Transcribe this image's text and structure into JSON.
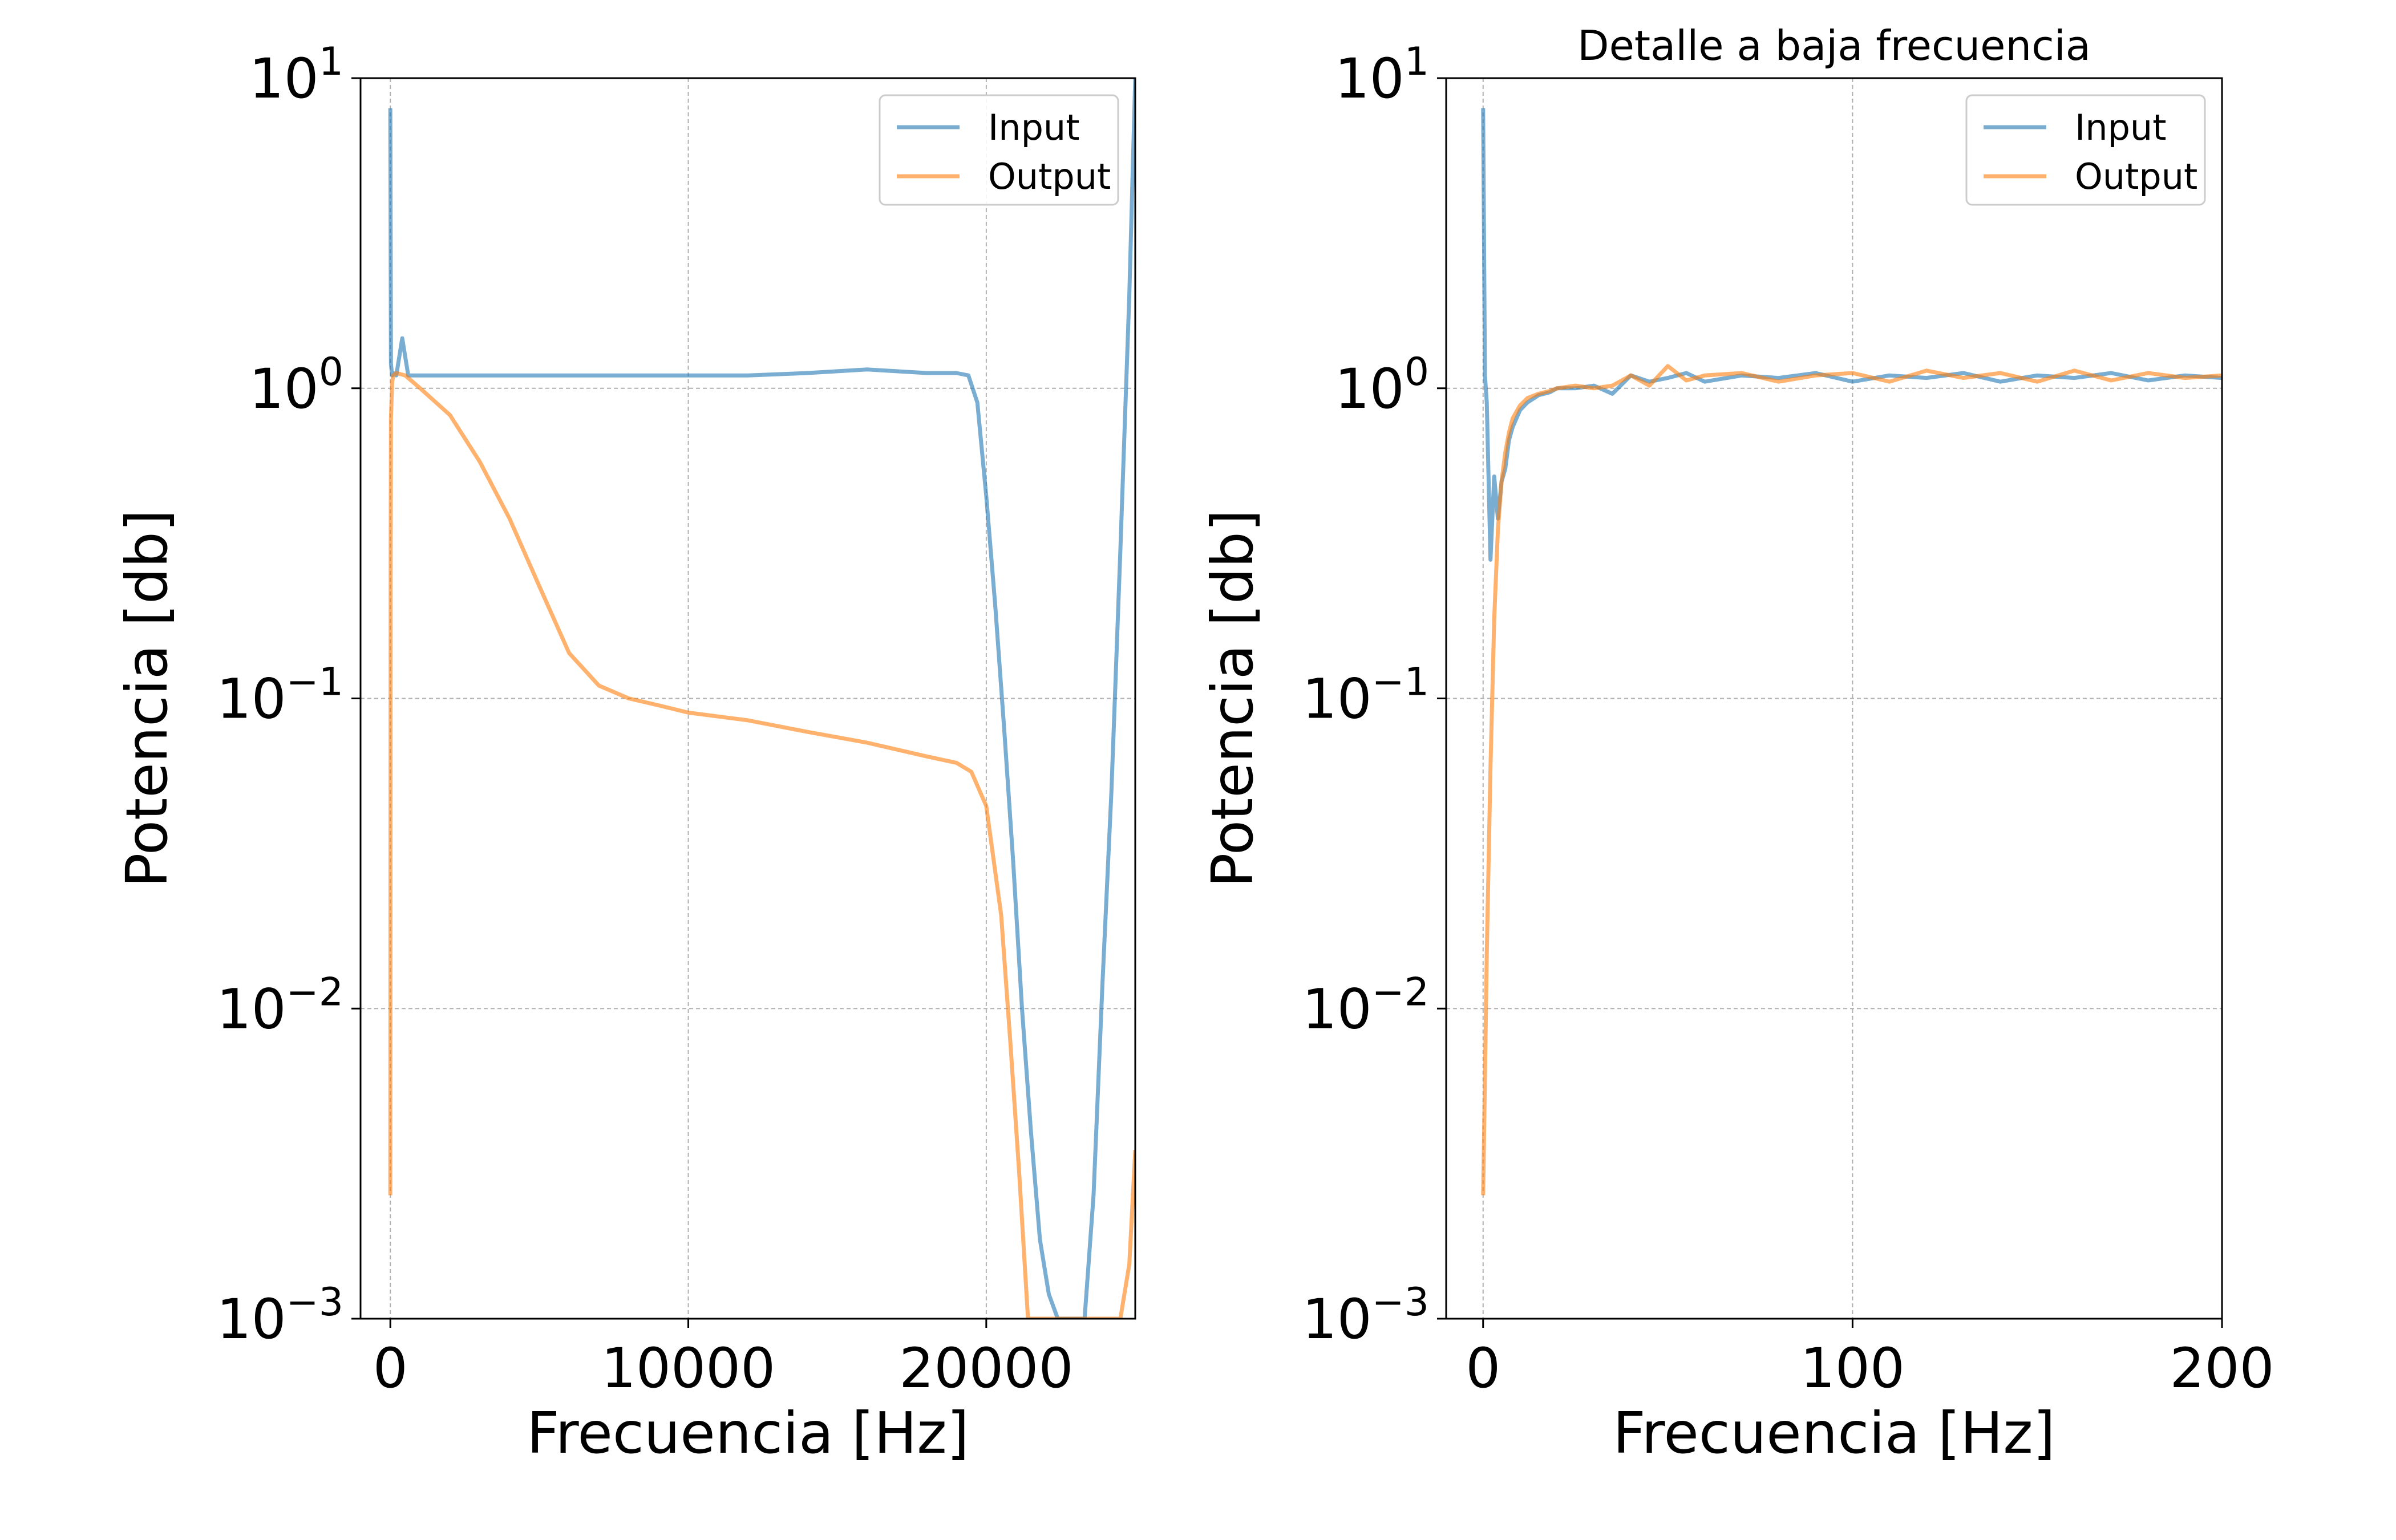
{
  "chart_data": [
    {
      "type": "line",
      "title": "",
      "xlabel": "Frecuencia [Hz]",
      "ylabel": "Potencia [db]",
      "yscale": "log",
      "xlim": [
        -1000,
        25000
      ],
      "ylim": [
        0.001,
        10
      ],
      "x_ticks": [
        0,
        10000,
        20000
      ],
      "x_tick_labels": [
        "0",
        "10000",
        "20000"
      ],
      "y_ticks": [
        0.001,
        0.01,
        0.1,
        1,
        10
      ],
      "y_tick_labels": [
        {
          "base": "10",
          "exp": "−3"
        },
        {
          "base": "10",
          "exp": "−2"
        },
        {
          "base": "10",
          "exp": "−1"
        },
        {
          "base": "10",
          "exp": "0"
        },
        {
          "base": "10",
          "exp": "1"
        }
      ],
      "grid": true,
      "legend_position": "top-right",
      "series": [
        {
          "name": "Input",
          "color": "#1f77b4",
          "x": [
            0,
            20,
            60,
            100,
            200,
            400,
            600,
            1000,
            2000,
            4000,
            6000,
            8000,
            10000,
            12000,
            14000,
            16000,
            18000,
            19000,
            19400,
            19700,
            20000,
            20300,
            20600,
            20900,
            21200,
            21500,
            21800,
            22100,
            22400,
            22700,
            23000,
            23300,
            23600,
            23900,
            24200,
            24500,
            24800,
            25000
          ],
          "y": [
            8.0,
            1.2,
            1.1,
            1.12,
            1.1,
            1.45,
            1.1,
            1.1,
            1.1,
            1.1,
            1.1,
            1.1,
            1.1,
            1.1,
            1.12,
            1.15,
            1.12,
            1.12,
            1.1,
            0.9,
            0.45,
            0.2,
            0.08,
            0.03,
            0.01,
            0.004,
            0.0018,
            0.0012,
            0.001,
            0.001,
            0.001,
            0.001,
            0.0025,
            0.012,
            0.05,
            0.3,
            2.0,
            10.0
          ]
        },
        {
          "name": "Output",
          "color": "#ff7f0e",
          "x": [
            0,
            10,
            20,
            60,
            100,
            200,
            500,
            1000,
            2000,
            3000,
            4000,
            5000,
            6000,
            7000,
            8000,
            9000,
            10000,
            12000,
            14000,
            16000,
            18000,
            19000,
            19500,
            20000,
            20500,
            20800,
            21100,
            21400,
            21700,
            22000,
            24000,
            24500,
            24800,
            25000
          ],
          "y": [
            0.0025,
            0.28,
            0.8,
            1.05,
            1.1,
            1.12,
            1.1,
            1.0,
            0.82,
            0.58,
            0.38,
            0.23,
            0.14,
            0.11,
            0.1,
            0.095,
            0.09,
            0.085,
            0.078,
            0.072,
            0.065,
            0.062,
            0.058,
            0.045,
            0.02,
            0.008,
            0.003,
            0.001,
            0.001,
            0.001,
            0.001,
            0.001,
            0.0015,
            0.0035
          ]
        }
      ]
    },
    {
      "type": "line",
      "title": "Detalle a baja frecuencia",
      "xlabel": "Frecuencia [Hz]",
      "ylabel": "Potencia [db]",
      "yscale": "log",
      "xlim": [
        -10,
        200
      ],
      "ylim": [
        0.001,
        10
      ],
      "x_ticks": [
        0,
        100,
        200
      ],
      "x_tick_labels": [
        "0",
        "100",
        "200"
      ],
      "y_ticks": [
        0.001,
        0.01,
        0.1,
        1,
        10
      ],
      "y_tick_labels": [
        {
          "base": "10",
          "exp": "−3"
        },
        {
          "base": "10",
          "exp": "−2"
        },
        {
          "base": "10",
          "exp": "−1"
        },
        {
          "base": "10",
          "exp": "0"
        },
        {
          "base": "10",
          "exp": "1"
        }
      ],
      "grid": true,
      "legend_position": "top-right",
      "series": [
        {
          "name": "Input",
          "color": "#1f77b4",
          "x": [
            0,
            0.5,
            1,
            2,
            3,
            4,
            5,
            6,
            7,
            8,
            10,
            12,
            15,
            18,
            20,
            25,
            30,
            35,
            40,
            45,
            50,
            55,
            60,
            70,
            80,
            90,
            100,
            110,
            120,
            130,
            140,
            150,
            160,
            170,
            180,
            190,
            200
          ],
          "y": [
            8.0,
            1.1,
            0.9,
            0.28,
            0.52,
            0.38,
            0.5,
            0.55,
            0.68,
            0.75,
            0.85,
            0.9,
            0.95,
            0.97,
            1.0,
            1.0,
            1.02,
            0.96,
            1.1,
            1.05,
            1.08,
            1.12,
            1.05,
            1.1,
            1.08,
            1.12,
            1.05,
            1.1,
            1.08,
            1.12,
            1.05,
            1.1,
            1.08,
            1.12,
            1.06,
            1.1,
            1.08
          ]
        },
        {
          "name": "Output",
          "color": "#ff7f0e",
          "x": [
            0,
            0.5,
            1,
            2,
            3,
            4,
            5,
            6,
            7,
            8,
            10,
            12,
            15,
            18,
            20,
            25,
            30,
            35,
            40,
            45,
            50,
            55,
            60,
            70,
            80,
            90,
            100,
            110,
            120,
            130,
            140,
            150,
            160,
            170,
            180,
            190,
            200
          ],
          "y": [
            0.0025,
            0.006,
            0.015,
            0.06,
            0.18,
            0.35,
            0.5,
            0.62,
            0.72,
            0.8,
            0.88,
            0.93,
            0.96,
            0.98,
            1.0,
            1.02,
            1.0,
            1.02,
            1.1,
            1.02,
            1.18,
            1.06,
            1.1,
            1.12,
            1.05,
            1.1,
            1.12,
            1.05,
            1.14,
            1.08,
            1.12,
            1.05,
            1.14,
            1.06,
            1.12,
            1.08,
            1.1
          ]
        }
      ]
    }
  ]
}
